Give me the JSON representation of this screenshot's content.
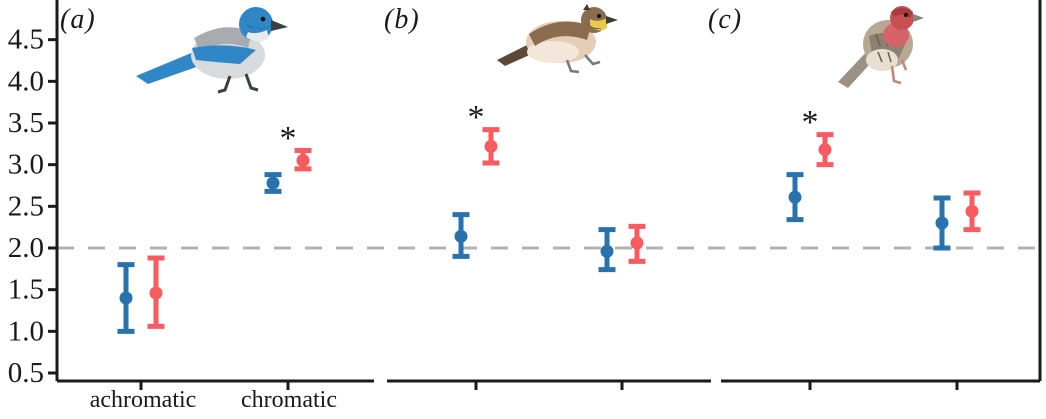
{
  "chart_data": {
    "type": "errorbar",
    "title": "",
    "xlabel": "",
    "ylabel": "",
    "y_axis": {
      "ticks": [
        0.5,
        1.0,
        1.5,
        2.0,
        2.5,
        3.0,
        3.5,
        4.0,
        4.5
      ],
      "range": [
        0.45,
        5.0
      ]
    },
    "grid": false,
    "legend": "none",
    "reference_line": {
      "value": 2.0,
      "style": "dashed",
      "color": "#b3b3b3"
    },
    "series": [
      {
        "name": "blue",
        "color": "#2873ae"
      },
      {
        "name": "red",
        "color": "#f95b60"
      }
    ],
    "significance_marker": "*",
    "panels": [
      {
        "label": "(a)",
        "bird_image": "western-scrub-jay",
        "category_labels": [
          "achromatic",
          "chromatic"
        ],
        "groups": [
          {
            "category": "achromatic",
            "significant": false,
            "points": [
              {
                "series": "blue",
                "value": 1.4,
                "lo": 1.0,
                "hi": 1.8
              },
              {
                "series": "red",
                "value": 1.46,
                "lo": 1.06,
                "hi": 1.88
              }
            ]
          },
          {
            "category": "chromatic",
            "significant": true,
            "points": [
              {
                "series": "blue",
                "value": 2.78,
                "lo": 2.68,
                "hi": 2.88
              },
              {
                "series": "red",
                "value": 3.05,
                "lo": 2.95,
                "hi": 3.17
              }
            ]
          }
        ]
      },
      {
        "label": "(b)",
        "bird_image": "horned-lark",
        "category_labels": [
          "",
          ""
        ],
        "groups": [
          {
            "category": "",
            "significant": true,
            "points": [
              {
                "series": "blue",
                "value": 2.14,
                "lo": 1.9,
                "hi": 2.4
              },
              {
                "series": "red",
                "value": 3.22,
                "lo": 3.02,
                "hi": 3.42
              }
            ]
          },
          {
            "category": "",
            "significant": false,
            "points": [
              {
                "series": "blue",
                "value": 1.96,
                "lo": 1.74,
                "hi": 2.22
              },
              {
                "series": "red",
                "value": 2.06,
                "lo": 1.84,
                "hi": 2.26
              }
            ]
          }
        ]
      },
      {
        "label": "(c)",
        "bird_image": "house-finch",
        "category_labels": [
          "",
          ""
        ],
        "groups": [
          {
            "category": "",
            "significant": true,
            "points": [
              {
                "series": "blue",
                "value": 2.61,
                "lo": 2.34,
                "hi": 2.88
              },
              {
                "series": "red",
                "value": 3.18,
                "lo": 3.0,
                "hi": 3.36
              }
            ]
          },
          {
            "category": "",
            "significant": false,
            "points": [
              {
                "series": "blue",
                "value": 2.3,
                "lo": 2.0,
                "hi": 2.6
              },
              {
                "series": "red",
                "value": 2.44,
                "lo": 2.22,
                "hi": 2.66
              }
            ]
          }
        ]
      }
    ]
  }
}
